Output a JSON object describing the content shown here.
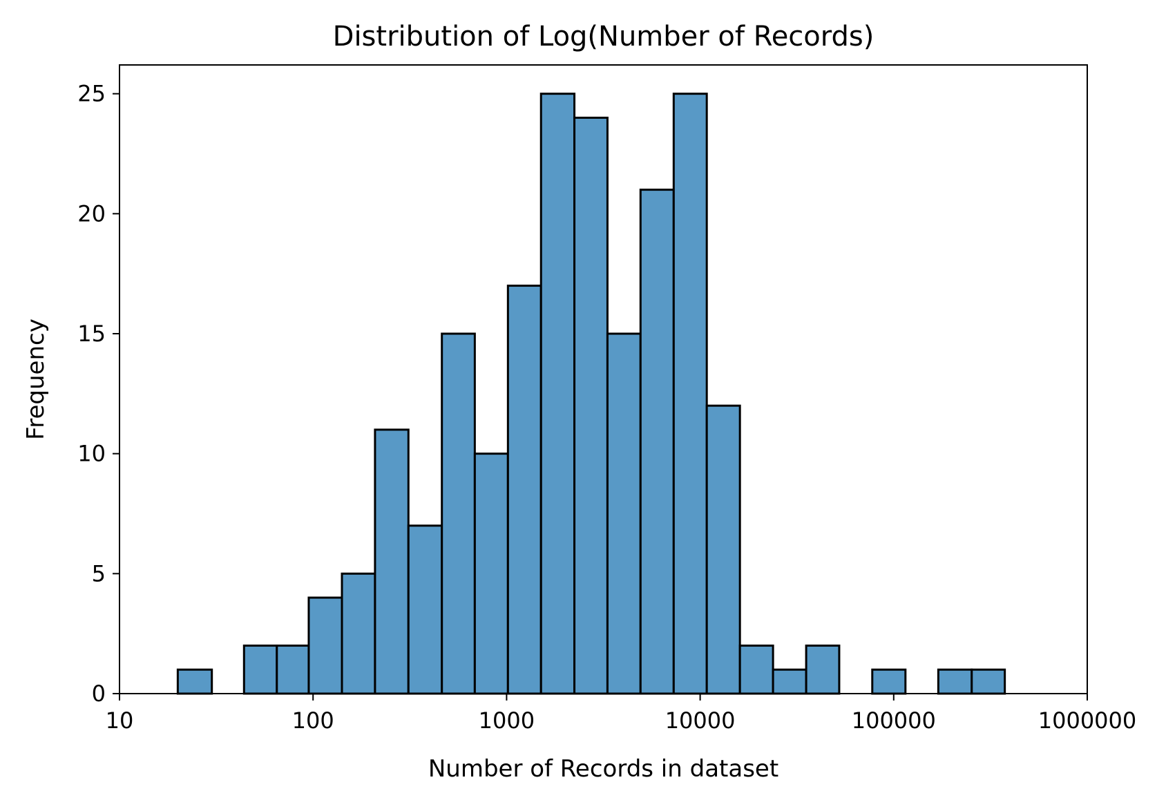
{
  "chart_data": {
    "type": "bar",
    "title": "Distribution of Log(Number of Records)",
    "xlabel": "Number of Records in dataset",
    "ylabel": "Frequency",
    "x_scale": "log",
    "xlim": [
      10,
      1000000
    ],
    "ylim": [
      0,
      26.2
    ],
    "x_ticks": [
      {
        "value": 10,
        "label": "10"
      },
      {
        "value": 100,
        "label": "100"
      },
      {
        "value": 1000,
        "label": "1000"
      },
      {
        "value": 10000,
        "label": "10000"
      },
      {
        "value": 100000,
        "label": "100000"
      },
      {
        "value": 1000000,
        "label": "1000000"
      }
    ],
    "y_ticks": [
      {
        "value": 0,
        "label": "0"
      },
      {
        "value": 5,
        "label": "5"
      },
      {
        "value": 10,
        "label": "10"
      },
      {
        "value": 15,
        "label": "15"
      },
      {
        "value": 20,
        "label": "20"
      },
      {
        "value": 25,
        "label": "25"
      }
    ],
    "grid": false,
    "bar_color": "#5899c6",
    "edge_color": "#000000",
    "bins": [
      {
        "x0": 20,
        "x1": 30,
        "count": 1
      },
      {
        "x0": 30,
        "x1": 44,
        "count": 0
      },
      {
        "x0": 44,
        "x1": 65,
        "count": 2
      },
      {
        "x0": 65,
        "x1": 95,
        "count": 2
      },
      {
        "x0": 95,
        "x1": 141,
        "count": 4
      },
      {
        "x0": 141,
        "x1": 209,
        "count": 5
      },
      {
        "x0": 209,
        "x1": 311,
        "count": 11
      },
      {
        "x0": 311,
        "x1": 463,
        "count": 7
      },
      {
        "x0": 463,
        "x1": 685,
        "count": 15
      },
      {
        "x0": 685,
        "x1": 1016,
        "count": 10
      },
      {
        "x0": 1016,
        "x1": 1506,
        "count": 17
      },
      {
        "x0": 1506,
        "x1": 2240,
        "count": 25
      },
      {
        "x0": 2240,
        "x1": 3320,
        "count": 24
      },
      {
        "x0": 3320,
        "x1": 4920,
        "count": 15
      },
      {
        "x0": 4920,
        "x1": 7300,
        "count": 21
      },
      {
        "x0": 7300,
        "x1": 10820,
        "count": 25
      },
      {
        "x0": 10820,
        "x1": 16050,
        "count": 12
      },
      {
        "x0": 16050,
        "x1": 23800,
        "count": 2
      },
      {
        "x0": 23800,
        "x1": 35300,
        "count": 1
      },
      {
        "x0": 35300,
        "x1": 52300,
        "count": 2
      },
      {
        "x0": 52300,
        "x1": 77500,
        "count": 0
      },
      {
        "x0": 77500,
        "x1": 115000,
        "count": 1
      },
      {
        "x0": 115000,
        "x1": 170000,
        "count": 0
      },
      {
        "x0": 170000,
        "x1": 253000,
        "count": 1
      },
      {
        "x0": 253000,
        "x1": 375000,
        "count": 1
      }
    ]
  }
}
